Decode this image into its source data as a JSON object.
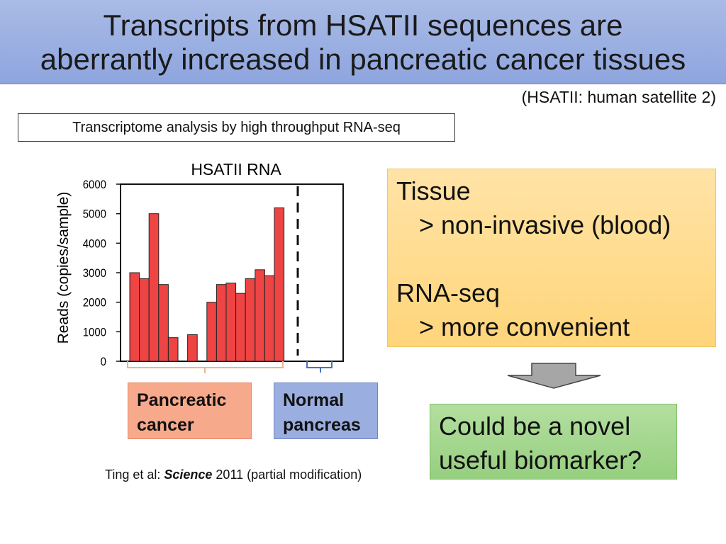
{
  "slide": {
    "title_line1": "Transcripts from HSATII sequences are",
    "title_line2": "aberrantly increased in pancreatic cancer tissues",
    "abbreviation_note": "(HSATII: human satellite 2)",
    "method": "Transcriptome analysis by high throughput RNA-seq",
    "category_cancer_line1": "Pancreatic",
    "category_cancer_line2": "cancer",
    "category_normal_line1": "Normal",
    "category_normal_line2": "pancreas",
    "advantages": {
      "line1": "Tissue",
      "line2": ">  non-invasive (blood)",
      "line3": "RNA-seq",
      "line4": ">  more convenient"
    },
    "conclusion_line1": "Could be a novel",
    "conclusion_line2": "useful biomarker?",
    "citation_prefix": "Ting et al: ",
    "citation_journal": "Science",
    "citation_suffix": "  2011 (partial modification)"
  },
  "chart_data": {
    "type": "bar",
    "title": "HSATII RNA",
    "ylabel": "Reads (copies/sample)",
    "xlabel": "",
    "ylim": [
      0,
      6000
    ],
    "yticks": [
      "0",
      "1000",
      "2000",
      "3000",
      "4000",
      "5000",
      "6000"
    ],
    "pancreatic_cancer_values": [
      3000,
      2800,
      5000,
      2600,
      800,
      0,
      900,
      0,
      2000,
      2600,
      2650,
      2300,
      2800,
      3100,
      2900,
      5200
    ],
    "normal_pancreas_values": [
      0,
      0,
      0,
      0
    ],
    "bar_color": "#ee4444",
    "cancer_brace_color": "#f0b48e",
    "normal_brace_color": "#4a6fc4"
  }
}
